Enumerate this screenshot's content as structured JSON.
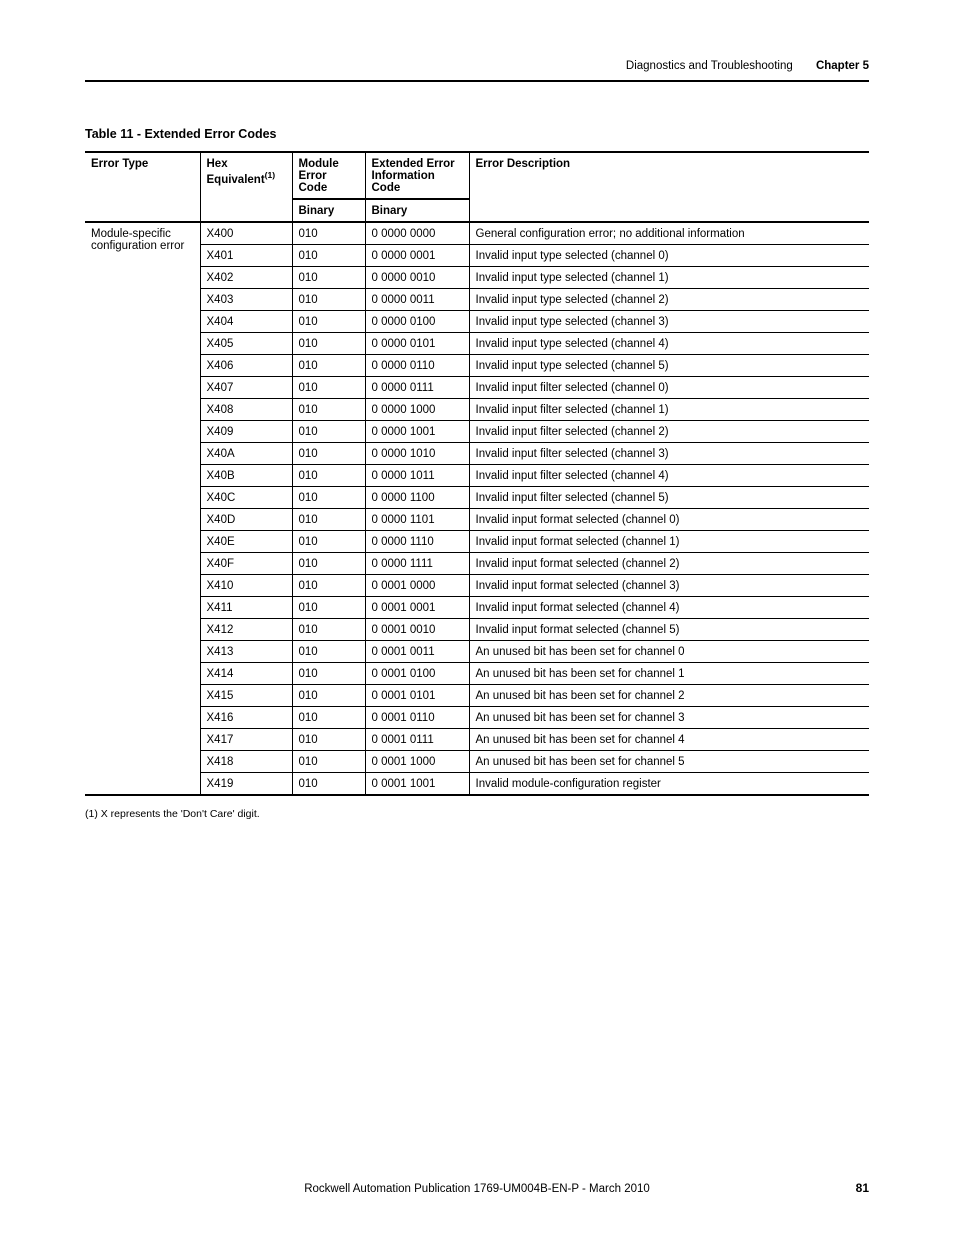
{
  "header": {
    "section": "Diagnostics and Troubleshooting",
    "chapter": "Chapter 5"
  },
  "table": {
    "title": "Table 11 - Extended Error Codes",
    "columns": {
      "errorType": "Error Type",
      "hexEquiv": "Hex Equivalent",
      "hexEquivSup": "(1)",
      "moduleErrCode": "Module Error Code",
      "extErrInfo": "Extended Error Information Code",
      "errDesc": "Error Description",
      "binary": "Binary"
    },
    "errorTypeText": "Module-specific configuration error",
    "rows": [
      {
        "hex": "X400",
        "mec": "010",
        "eei": "0 0000 0000",
        "desc": "General configuration error; no additional information"
      },
      {
        "hex": "X401",
        "mec": "010",
        "eei": "0 0000 0001",
        "desc": "Invalid input type selected (channel 0)"
      },
      {
        "hex": "X402",
        "mec": "010",
        "eei": "0 0000 0010",
        "desc": "Invalid input type selected (channel 1)"
      },
      {
        "hex": "X403",
        "mec": "010",
        "eei": "0 0000 0011",
        "desc": "Invalid input type selected (channel 2)"
      },
      {
        "hex": "X404",
        "mec": "010",
        "eei": "0 0000 0100",
        "desc": "Invalid input type selected (channel 3)"
      },
      {
        "hex": "X405",
        "mec": "010",
        "eei": "0 0000 0101",
        "desc": "Invalid input type selected (channel 4)"
      },
      {
        "hex": "X406",
        "mec": "010",
        "eei": "0 0000 0110",
        "desc": "Invalid input type selected (channel 5)"
      },
      {
        "hex": "X407",
        "mec": "010",
        "eei": "0 0000 0111",
        "desc": "Invalid input filter selected (channel 0)"
      },
      {
        "hex": "X408",
        "mec": "010",
        "eei": "0 0000 1000",
        "desc": "Invalid input filter selected (channel 1)"
      },
      {
        "hex": "X409",
        "mec": "010",
        "eei": "0 0000 1001",
        "desc": "Invalid input filter selected (channel 2)"
      },
      {
        "hex": "X40A",
        "mec": "010",
        "eei": "0 0000 1010",
        "desc": "Invalid input filter selected (channel 3)"
      },
      {
        "hex": "X40B",
        "mec": "010",
        "eei": "0 0000 1011",
        "desc": "Invalid input filter selected (channel 4)"
      },
      {
        "hex": "X40C",
        "mec": "010",
        "eei": "0 0000 1100",
        "desc": "Invalid input filter selected (channel 5)"
      },
      {
        "hex": "X40D",
        "mec": "010",
        "eei": "0 0000 1101",
        "desc": "Invalid input format selected (channel 0)"
      },
      {
        "hex": "X40E",
        "mec": "010",
        "eei": "0 0000 1110",
        "desc": "Invalid input format selected (channel 1)"
      },
      {
        "hex": "X40F",
        "mec": "010",
        "eei": "0 0000 1111",
        "desc": "Invalid input format selected (channel 2)"
      },
      {
        "hex": "X410",
        "mec": "010",
        "eei": "0 0001 0000",
        "desc": "Invalid input format selected (channel 3)"
      },
      {
        "hex": "X411",
        "mec": "010",
        "eei": "0 0001 0001",
        "desc": "Invalid input format selected (channel 4)"
      },
      {
        "hex": "X412",
        "mec": "010",
        "eei": "0 0001 0010",
        "desc": "Invalid input format selected (channel 5)"
      },
      {
        "hex": "X413",
        "mec": "010",
        "eei": "0 0001 0011",
        "desc": "An unused bit has been set for channel 0"
      },
      {
        "hex": "X414",
        "mec": "010",
        "eei": "0 0001 0100",
        "desc": "An unused bit has been set for channel 1"
      },
      {
        "hex": "X415",
        "mec": "010",
        "eei": "0 0001 0101",
        "desc": "An unused bit has been set for channel 2"
      },
      {
        "hex": "X416",
        "mec": "010",
        "eei": "0 0001 0110",
        "desc": "An unused bit has been set for channel 3"
      },
      {
        "hex": "X417",
        "mec": "010",
        "eei": "0 0001 0111",
        "desc": "An unused bit has been set for channel 4"
      },
      {
        "hex": "X418",
        "mec": "010",
        "eei": "0 0001 1000",
        "desc": "An unused bit has been set for channel 5"
      },
      {
        "hex": "X419",
        "mec": "010",
        "eei": "0 0001 1001",
        "desc": "Invalid module-configuration register"
      }
    ]
  },
  "footnote": "(1)   X represents the 'Don't Care' digit.",
  "footer": {
    "pub": "Rockwell Automation Publication 1769-UM004B-EN-P - March 2010",
    "page": "81"
  }
}
